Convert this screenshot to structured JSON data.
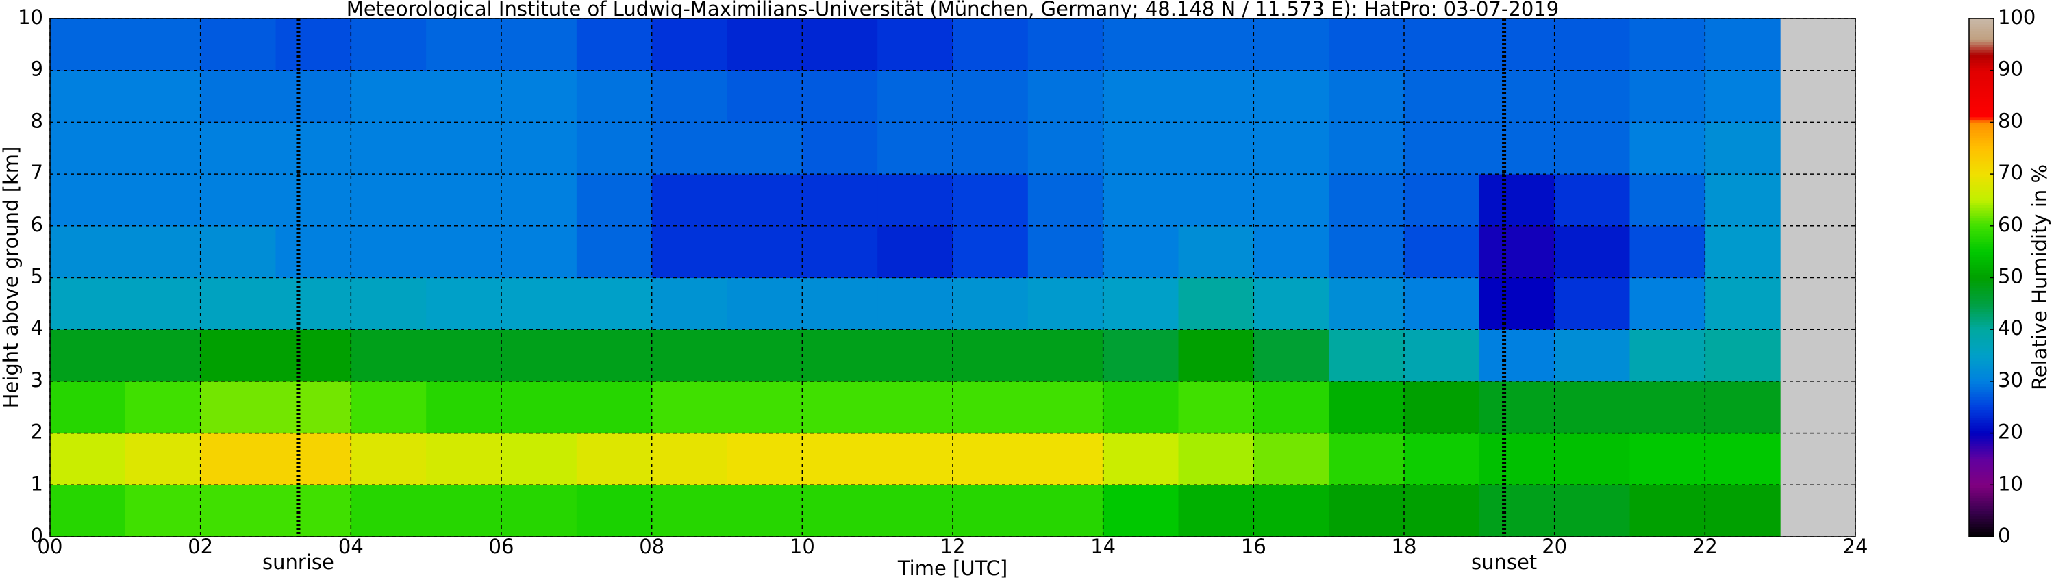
{
  "chart_data": {
    "type": "heatmap",
    "title": "Meteorological Institute of Ludwig-Maximilians-Universität (München, Germany; 48.148 N / 11.573 E):    HatPro: 03-07-2019",
    "xlabel": "Time [UTC]",
    "ylabel": "Height above ground [km]",
    "colorbar_label": "Relative Humidity in %",
    "xbins": [
      0,
      1,
      2,
      3,
      4,
      5,
      6,
      7,
      8,
      9,
      10,
      11,
      12,
      13,
      14,
      15,
      16,
      17,
      18,
      19,
      20,
      21,
      22,
      23
    ],
    "ybins": [
      0,
      1,
      2,
      3,
      4,
      5,
      6,
      7,
      8,
      9,
      10
    ],
    "z": [
      [
        58,
        60,
        60,
        60,
        58,
        58,
        58,
        57,
        58,
        58,
        58,
        58,
        58,
        58,
        55,
        52,
        52,
        50,
        50,
        48,
        48,
        50,
        50
      ],
      [
        66,
        68,
        72,
        72,
        68,
        67,
        66,
        68,
        69,
        70,
        70,
        70,
        70,
        70,
        66,
        64,
        62,
        58,
        56,
        54,
        54,
        55,
        55
      ],
      [
        58,
        60,
        62,
        62,
        60,
        58,
        58,
        58,
        60,
        60,
        60,
        60,
        60,
        60,
        58,
        60,
        58,
        52,
        50,
        48,
        48,
        48,
        48
      ],
      [
        48,
        48,
        50,
        50,
        48,
        48,
        48,
        48,
        48,
        48,
        48,
        48,
        48,
        48,
        46,
        50,
        46,
        40,
        38,
        30,
        32,
        38,
        40
      ],
      [
        36,
        36,
        36,
        36,
        36,
        35,
        35,
        35,
        33,
        32,
        32,
        32,
        33,
        34,
        35,
        40,
        36,
        32,
        30,
        20,
        24,
        30,
        36
      ],
      [
        32,
        32,
        32,
        30,
        30,
        30,
        30,
        28,
        24,
        24,
        24,
        23,
        25,
        28,
        30,
        32,
        30,
        28,
        26,
        19,
        22,
        26,
        34
      ],
      [
        30,
        30,
        30,
        30,
        30,
        30,
        30,
        28,
        24,
        24,
        24,
        24,
        25,
        28,
        30,
        30,
        30,
        28,
        27,
        21,
        24,
        28,
        33
      ],
      [
        30,
        30,
        30,
        30,
        30,
        30,
        30,
        29,
        28,
        28,
        27,
        28,
        28,
        29,
        30,
        30,
        30,
        29,
        28,
        28,
        28,
        30,
        32
      ],
      [
        30,
        30,
        29,
        29,
        30,
        30,
        30,
        29,
        28,
        27,
        27,
        28,
        28,
        29,
        30,
        30,
        30,
        29,
        28,
        28,
        28,
        29,
        30
      ],
      [
        28,
        28,
        27,
        26,
        27,
        28,
        28,
        26,
        24,
        23,
        23,
        24,
        26,
        27,
        28,
        28,
        28,
        27,
        27,
        27,
        27,
        28,
        29
      ]
    ],
    "xlim": [
      0,
      24
    ],
    "xticks": [
      {
        "value": 0,
        "label": "00"
      },
      {
        "value": 2,
        "label": "02"
      },
      {
        "value": 4,
        "label": "04"
      },
      {
        "value": 6,
        "label": "06"
      },
      {
        "value": 8,
        "label": "08"
      },
      {
        "value": 10,
        "label": "10"
      },
      {
        "value": 12,
        "label": "12"
      },
      {
        "value": 14,
        "label": "14"
      },
      {
        "value": 16,
        "label": "16"
      },
      {
        "value": 18,
        "label": "18"
      },
      {
        "value": 20,
        "label": "20"
      },
      {
        "value": 22,
        "label": "22"
      },
      {
        "value": 24,
        "label": "24"
      }
    ],
    "ylim": [
      0,
      10
    ],
    "yticks": [
      0,
      1,
      2,
      3,
      4,
      5,
      6,
      7,
      8,
      9,
      10
    ],
    "clim": [
      0,
      100
    ],
    "cticks": [
      0,
      10,
      20,
      30,
      40,
      50,
      60,
      70,
      80,
      90,
      100
    ],
    "colorscale": [
      [
        0,
        "#000000"
      ],
      [
        5,
        "#3a0050"
      ],
      [
        10,
        "#800080"
      ],
      [
        15,
        "#6000a0"
      ],
      [
        20,
        "#0000c0"
      ],
      [
        25,
        "#0040e0"
      ],
      [
        30,
        "#0080e0"
      ],
      [
        35,
        "#00a0c8"
      ],
      [
        40,
        "#00a8a0"
      ],
      [
        45,
        "#00a040"
      ],
      [
        50,
        "#00a000"
      ],
      [
        55,
        "#00c800"
      ],
      [
        60,
        "#40e000"
      ],
      [
        65,
        "#c0f000"
      ],
      [
        70,
        "#f0e000"
      ],
      [
        75,
        "#ffc000"
      ],
      [
        80,
        "#ff9000"
      ],
      [
        81,
        "#ff0000"
      ],
      [
        90,
        "#e00000"
      ],
      [
        93,
        "#b00000"
      ],
      [
        96,
        "#c0a080"
      ],
      [
        100,
        "#c8b8a8"
      ]
    ],
    "missing_color": "#c8c8c8",
    "grid": true,
    "annotations": [
      {
        "text": "sunrise",
        "x": 3.3
      },
      {
        "text": "sunset",
        "x": 19.33
      }
    ]
  }
}
